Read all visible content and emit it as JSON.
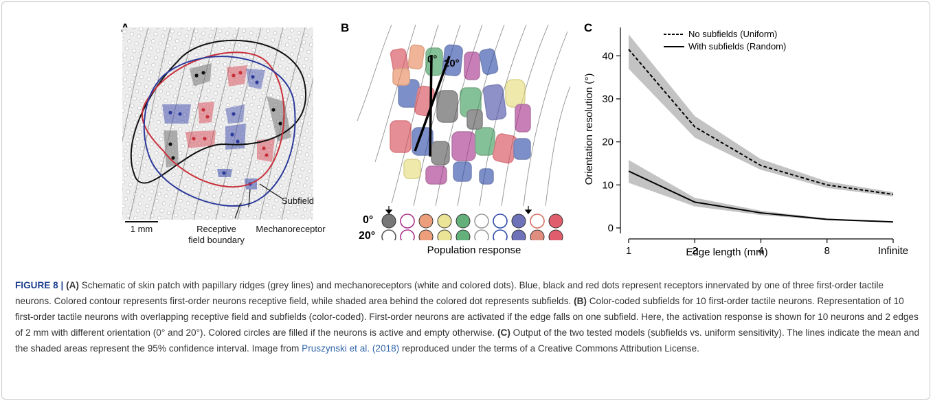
{
  "panel_a": {
    "label": "A",
    "scale_bar": "1 mm",
    "annotations": {
      "subfield": "Subfield",
      "rf_boundary_line1": "Receptive",
      "rf_boundary_line2": "field boundary",
      "mechanoreceptor": "Mechanoreceptor"
    }
  },
  "panel_b": {
    "label": "B",
    "angle_labels": [
      "0°",
      "20°"
    ],
    "row_labels": [
      "0°",
      "20°"
    ],
    "xlabel": "Population response",
    "colors": [
      "#555555",
      "#a8328c",
      "#e8875a",
      "#e6dc7a",
      "#3c9c5a",
      "#9a9a9a",
      "#2e4ba8",
      "#4a4fa8",
      "#d87060",
      "#d8344a"
    ],
    "row_0deg_filled": [
      true,
      false,
      true,
      true,
      true,
      false,
      false,
      true,
      false,
      true
    ],
    "row_20deg_filled": [
      false,
      false,
      true,
      true,
      true,
      false,
      false,
      true,
      true,
      true
    ]
  },
  "chart_data": {
    "type": "line",
    "panel_label": "C",
    "x": [
      "1",
      "2",
      "4",
      "8",
      "Infinite"
    ],
    "xlabel": "Edge length (mm)",
    "ylabel": "Orientation resolution (°)",
    "ylim": [
      0,
      45
    ],
    "yticks": [
      0,
      10,
      20,
      30,
      40
    ],
    "legend_position": "top-right",
    "series": [
      {
        "name": "No subfields (Uniform)",
        "style": "dashed",
        "values": [
          41.5,
          23.5,
          14.5,
          10,
          7.8
        ],
        "ci_low": [
          37,
          21,
          13.5,
          9.3,
          7.3
        ],
        "ci_high": [
          45,
          26,
          16,
          10.8,
          8.3
        ]
      },
      {
        "name": "With subfields (Random)",
        "style": "solid",
        "values": [
          13.2,
          6,
          3.5,
          2,
          1.4
        ],
        "ci_low": [
          10.5,
          5,
          3,
          1.8,
          1.3
        ],
        "ci_high": [
          15.8,
          7,
          4,
          2.2,
          1.5
        ]
      }
    ]
  },
  "caption": {
    "figure_label": "FIGURE 8 |",
    "a_label": "(A)",
    "a_text": " Schematic of skin patch with papillary ridges (grey lines) and mechanoreceptors (white and colored dots). Blue, black and red dots represent receptors innervated by one of three first-order tactile neurons. Colored contour represents first-order neurons receptive field, while shaded area behind the colored dot represents subfields. ",
    "b_label": "(B)",
    "b_text": " Color-coded subfields for 10 first-order tactile neurons. Representation of 10 first-order tactile neurons with overlapping receptive field and subfields (color-coded). First-order neurons are activated if the edge falls on one subfield. Here, the activation response is shown for 10 neurons and 2 edges of 2 mm with different orientation (0° and 20°). Colored circles are filled if the neurons is active and empty otherwise. ",
    "c_label": "(C)",
    "c_text": " Output of the two tested models (subfields vs. uniform sensitivity). The lines indicate the mean and the shaded areas represent the 95% confidence interval. Image from ",
    "citation": "Pruszynski et al. (2018)",
    "end_text": " reproduced under the terms of a Creative Commons Attribution License."
  }
}
